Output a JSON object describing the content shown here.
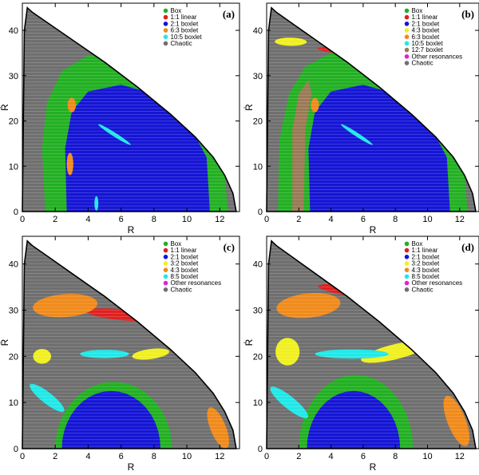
{
  "chart_data": [
    {
      "type": "scatter",
      "panel_label": "(a)",
      "xlabel": "R",
      "ylabel": "Ṙ",
      "xlim": [
        0,
        13.2
      ],
      "ylim": [
        0,
        46
      ],
      "xticks": [
        0,
        2,
        4,
        6,
        8,
        10,
        12
      ],
      "yticks": [
        0,
        10,
        20,
        30,
        40
      ],
      "legend_position": "top-right",
      "legend": [
        {
          "name": "Box",
          "color": "#22b022"
        },
        {
          "name": "1:1 linear",
          "color": "#e02020"
        },
        {
          "name": "2:1 boxlet",
          "color": "#1515d5"
        },
        {
          "name": "6:3 boxlet",
          "color": "#f08a1a"
        },
        {
          "name": "10:5 boxlet",
          "color": "#20e8e8"
        },
        {
          "name": "Chaotic",
          "color": "#707070"
        }
      ]
    },
    {
      "type": "scatter",
      "panel_label": "(b)",
      "xlabel": "R",
      "ylabel": "Ṙ",
      "xlim": [
        0,
        13.2
      ],
      "ylim": [
        0,
        46
      ],
      "xticks": [
        0,
        2,
        4,
        6,
        8,
        10,
        12
      ],
      "yticks": [
        0,
        10,
        20,
        30,
        40
      ],
      "legend_position": "top-right",
      "legend": [
        {
          "name": "Box",
          "color": "#22b022"
        },
        {
          "name": "1:1 linear",
          "color": "#e02020"
        },
        {
          "name": "2:1 boxlet",
          "color": "#1515d5"
        },
        {
          "name": "4:3 boxlet",
          "color": "#f0f020"
        },
        {
          "name": "6:3 boxlet",
          "color": "#f08a1a"
        },
        {
          "name": "10:5 boxlet",
          "color": "#20e8e8"
        },
        {
          "name": "12:7 boxlet",
          "color": "#9a7a55"
        },
        {
          "name": "Other resonances",
          "color": "#e020e0"
        },
        {
          "name": "Chaotic",
          "color": "#707070"
        }
      ]
    },
    {
      "type": "scatter",
      "panel_label": "(c)",
      "xlabel": "R",
      "ylabel": "Ṙ",
      "xlim": [
        0,
        13.2
      ],
      "ylim": [
        0,
        46
      ],
      "xticks": [
        0,
        2,
        4,
        6,
        8,
        10,
        12
      ],
      "yticks": [
        0,
        10,
        20,
        30,
        40
      ],
      "legend_position": "top-right",
      "legend": [
        {
          "name": "Box",
          "color": "#22b022"
        },
        {
          "name": "1:1 linear",
          "color": "#e02020"
        },
        {
          "name": "2:1 boxlet",
          "color": "#1515d5"
        },
        {
          "name": "3:2 boxlet",
          "color": "#f0f020"
        },
        {
          "name": "4:3 boxlet",
          "color": "#f08a1a"
        },
        {
          "name": "8:5 boxlet",
          "color": "#20e8e8"
        },
        {
          "name": "Other resonances",
          "color": "#e020e0"
        },
        {
          "name": "Chaotic",
          "color": "#707070"
        }
      ]
    },
    {
      "type": "scatter",
      "panel_label": "(d)",
      "xlabel": "R",
      "ylabel": "Ṙ",
      "xlim": [
        0,
        13.2
      ],
      "ylim": [
        0,
        46
      ],
      "xticks": [
        0,
        2,
        4,
        6,
        8,
        10,
        12
      ],
      "yticks": [
        0,
        10,
        20,
        30,
        40
      ],
      "legend_position": "top-right",
      "legend": [
        {
          "name": "Box",
          "color": "#22b022"
        },
        {
          "name": "1:1 linear",
          "color": "#e02020"
        },
        {
          "name": "2:1 boxlet",
          "color": "#1515d5"
        },
        {
          "name": "3:2 boxlet",
          "color": "#f0f020"
        },
        {
          "name": "4:3 boxlet",
          "color": "#f08a1a"
        },
        {
          "name": "8:5 boxlet",
          "color": "#20e8e8"
        },
        {
          "name": "Other resonances",
          "color": "#e020e0"
        },
        {
          "name": "Chaotic",
          "color": "#707070"
        }
      ]
    }
  ]
}
